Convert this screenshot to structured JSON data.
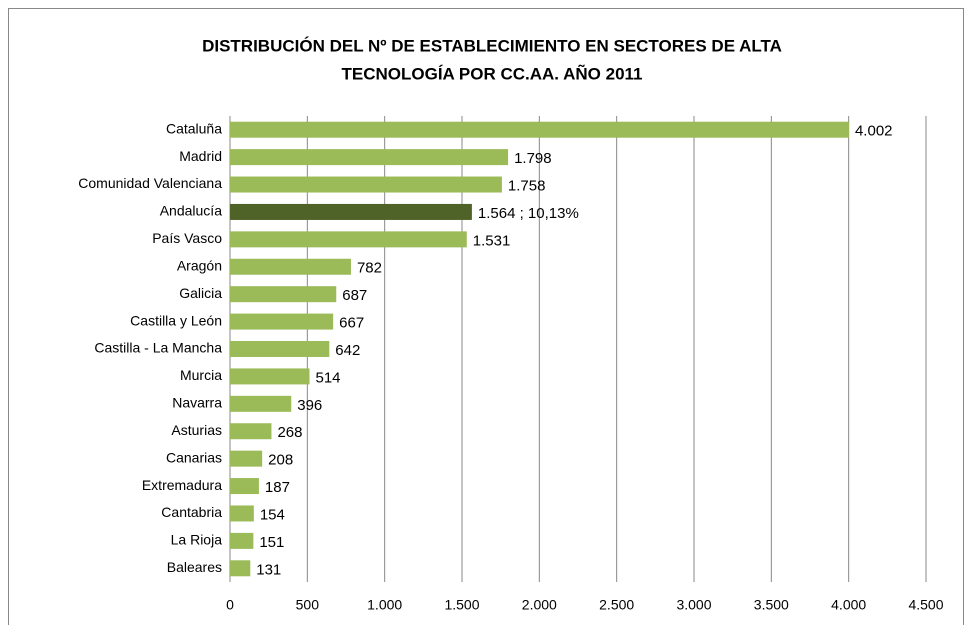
{
  "chart_data": {
    "type": "barh",
    "title": [
      "DISTRIBUCIÓN DEL Nº DE ESTABLECIMIENTO EN SECTORES DE ALTA",
      "TECNOLOGÍA POR CC.AA. AÑO 2011"
    ],
    "categories": [
      "Cataluña",
      "Madrid",
      "Comunidad Valenciana",
      "Andalucía",
      "País Vasco",
      "Aragón",
      "Galicia",
      "Castilla y León",
      "Castilla - La Mancha",
      "Murcia",
      "Navarra",
      "Asturias",
      "Canarias",
      "Extremadura",
      "Cantabria",
      "La Rioja",
      "Baleares"
    ],
    "values": [
      4002,
      1798,
      1758,
      1564,
      1531,
      782,
      687,
      667,
      642,
      514,
      396,
      268,
      208,
      187,
      154,
      151,
      131
    ],
    "value_labels": [
      "4.002",
      "1.798",
      "1.758",
      "1.564 ; 10,13%",
      "1.531",
      "782",
      "687",
      "667",
      "642",
      "514",
      "396",
      "268",
      "208",
      "187",
      "154",
      "151",
      "131"
    ],
    "colors": [
      "#9bbb59",
      "#9bbb59",
      "#9bbb59",
      "#4f6228",
      "#9bbb59",
      "#9bbb59",
      "#9bbb59",
      "#9bbb59",
      "#9bbb59",
      "#9bbb59",
      "#9bbb59",
      "#9bbb59",
      "#9bbb59",
      "#9bbb59",
      "#9bbb59",
      "#9bbb59",
      "#9bbb59"
    ],
    "xlim": [
      0,
      4500
    ],
    "xticks": [
      0,
      500,
      {
        "value": 1000,
        "label": "1.000"
      },
      {
        "value": 1500,
        "label": "1.500"
      },
      {
        "value": 2000,
        "label": "2.000"
      },
      {
        "value": 2500,
        "label": "2.500"
      },
      {
        "value": 3000,
        "label": "3.000"
      },
      {
        "value": 3500,
        "label": "3.500"
      },
      {
        "value": 4000,
        "label": "4.000"
      },
      {
        "value": 4500,
        "label": "4.500"
      }
    ],
    "grid": true
  }
}
